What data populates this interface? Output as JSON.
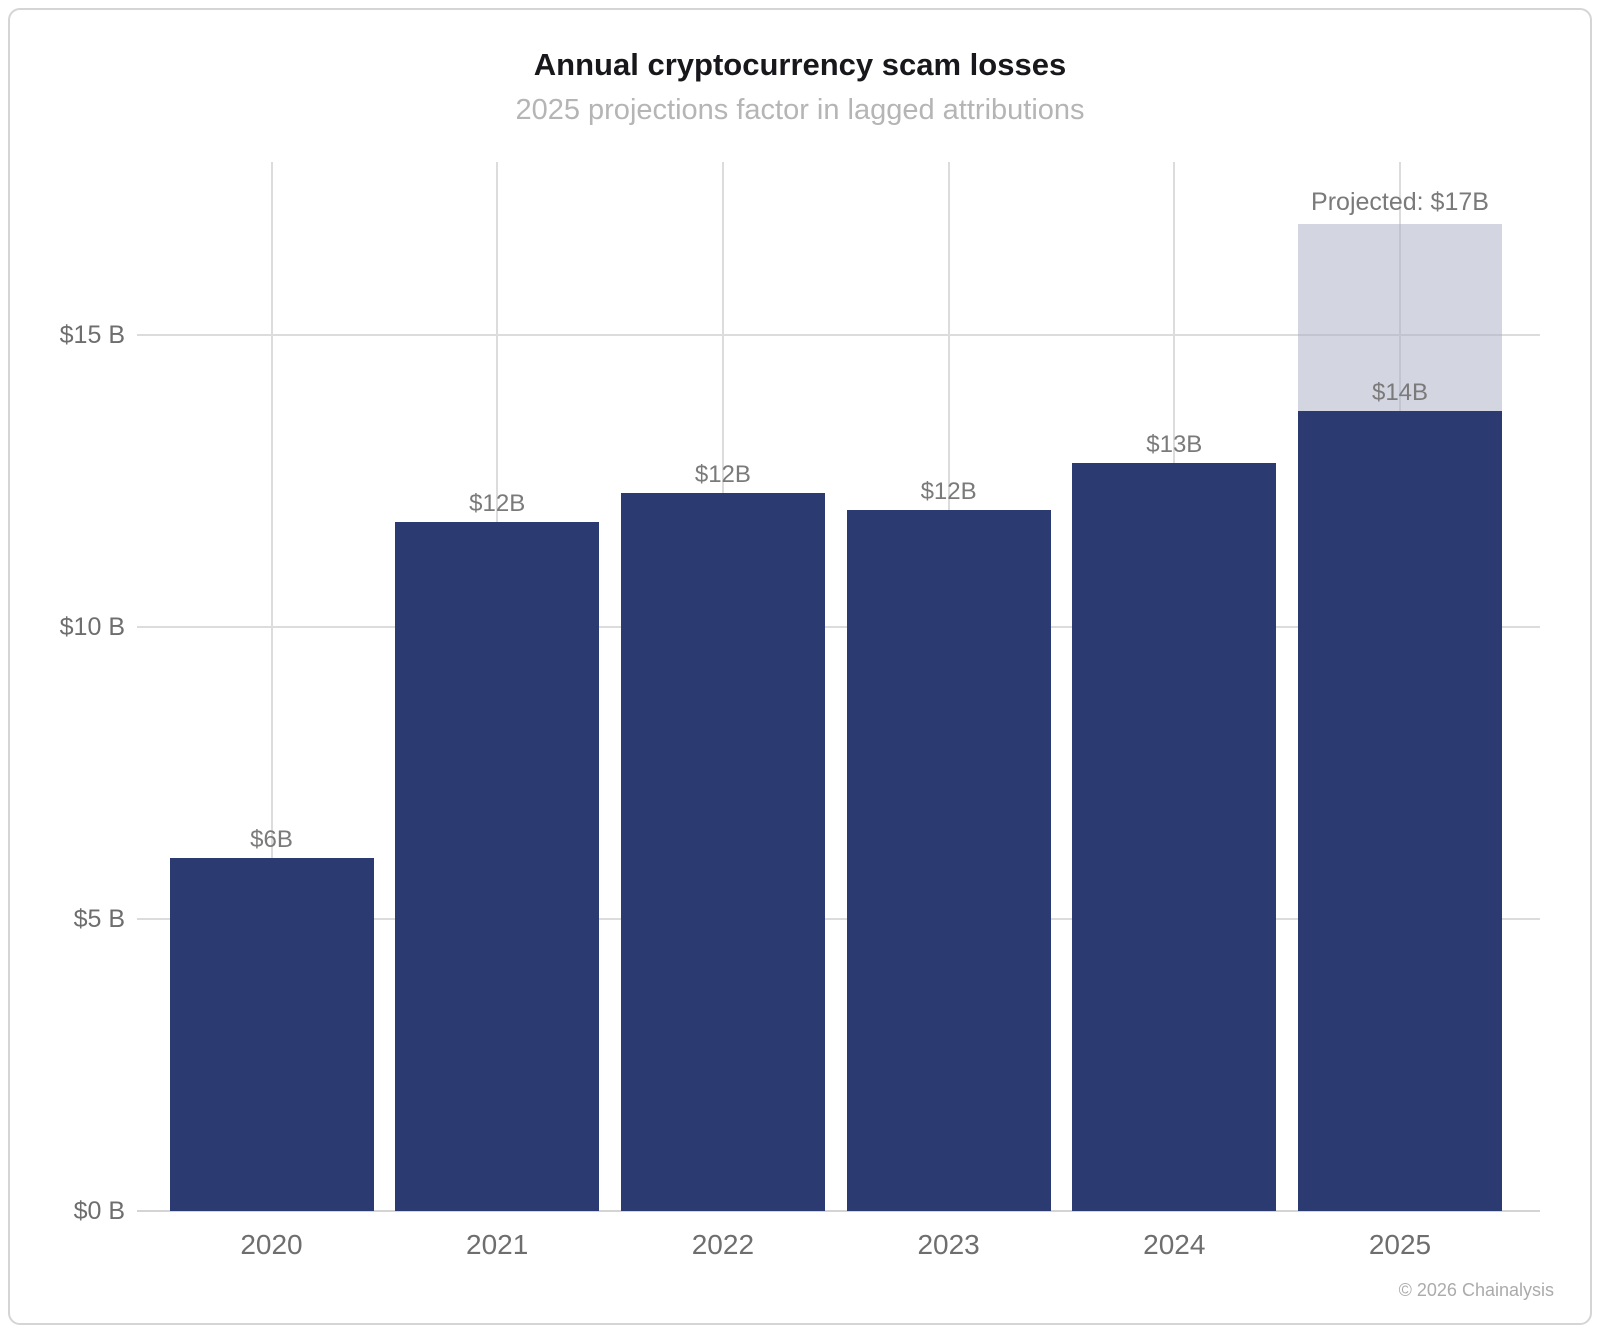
{
  "page": {
    "title": "Annual cryptocurrency scam losses",
    "subtitle": "2025 projections factor in lagged attributions",
    "attribution": "© 2026 Chainalysis"
  },
  "colors": {
    "bar": "#2b3a70",
    "projected_fill": "rgba(167, 171, 195, 0.5)",
    "gridline": "#dcdcdc",
    "axis_line": "#d4d4d4",
    "tick_label": "#6e6e6e",
    "bar_label": "#7a7a7a",
    "title": "#17171c",
    "subtitle": "#b5b5b5",
    "attribution": "#ababab"
  },
  "chart_data": {
    "type": "bar",
    "title": "Annual cryptocurrency scam losses",
    "subtitle": "2025 projections factor in lagged attributions",
    "categories": [
      "2020",
      "2021",
      "2022",
      "2023",
      "2024",
      "2025"
    ],
    "values": [
      6.05,
      11.8,
      12.3,
      12.0,
      12.8,
      13.7
    ],
    "bar_labels": [
      "$6B",
      "$12B",
      "$12B",
      "$12B",
      "$13B",
      "$14B"
    ],
    "projected": {
      "category": "2025",
      "total_value": 16.9,
      "label": "Projected: $17B"
    },
    "y_axis": {
      "ticks": [
        {
          "value": 0,
          "label": "$0 B"
        },
        {
          "value": 5,
          "label": "$5 B"
        },
        {
          "value": 10,
          "label": "$10 B"
        },
        {
          "value": 15,
          "label": "$15 B"
        }
      ],
      "range": [
        0,
        18
      ]
    },
    "grid": {
      "horizontal": true,
      "vertical": true
    },
    "legend": "none"
  }
}
